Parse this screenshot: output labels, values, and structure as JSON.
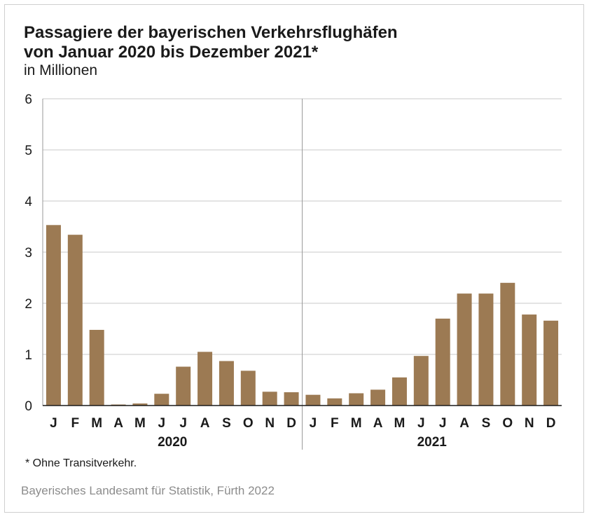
{
  "chart_data": {
    "type": "bar",
    "title_line1": "Passagiere der bayerischen Verkehrsflughäfen",
    "title_line2": "von Januar 2020 bis Dezember 2021*",
    "subtitle": "in Millionen",
    "categories": [
      "J",
      "F",
      "M",
      "A",
      "M",
      "J",
      "J",
      "A",
      "S",
      "O",
      "N",
      "D",
      "J",
      "F",
      "M",
      "A",
      "M",
      "J",
      "J",
      "A",
      "S",
      "O",
      "N",
      "D"
    ],
    "groups": [
      "2020",
      "2021"
    ],
    "values": [
      3.53,
      3.34,
      1.48,
      0.02,
      0.04,
      0.23,
      0.76,
      1.05,
      0.87,
      0.68,
      0.27,
      0.26,
      0.21,
      0.14,
      0.24,
      0.31,
      0.55,
      0.97,
      1.7,
      2.19,
      2.19,
      2.4,
      1.78,
      1.66
    ],
    "ylim": [
      0,
      6
    ],
    "yticks": [
      0,
      1,
      2,
      3,
      4,
      5,
      6
    ],
    "grid": true,
    "bar_color": "#9c7a53"
  },
  "footnote": "*  Ohne Transitverkehr.",
  "source": "Bayerisches Landesamt für Statistik, Fürth 2022"
}
